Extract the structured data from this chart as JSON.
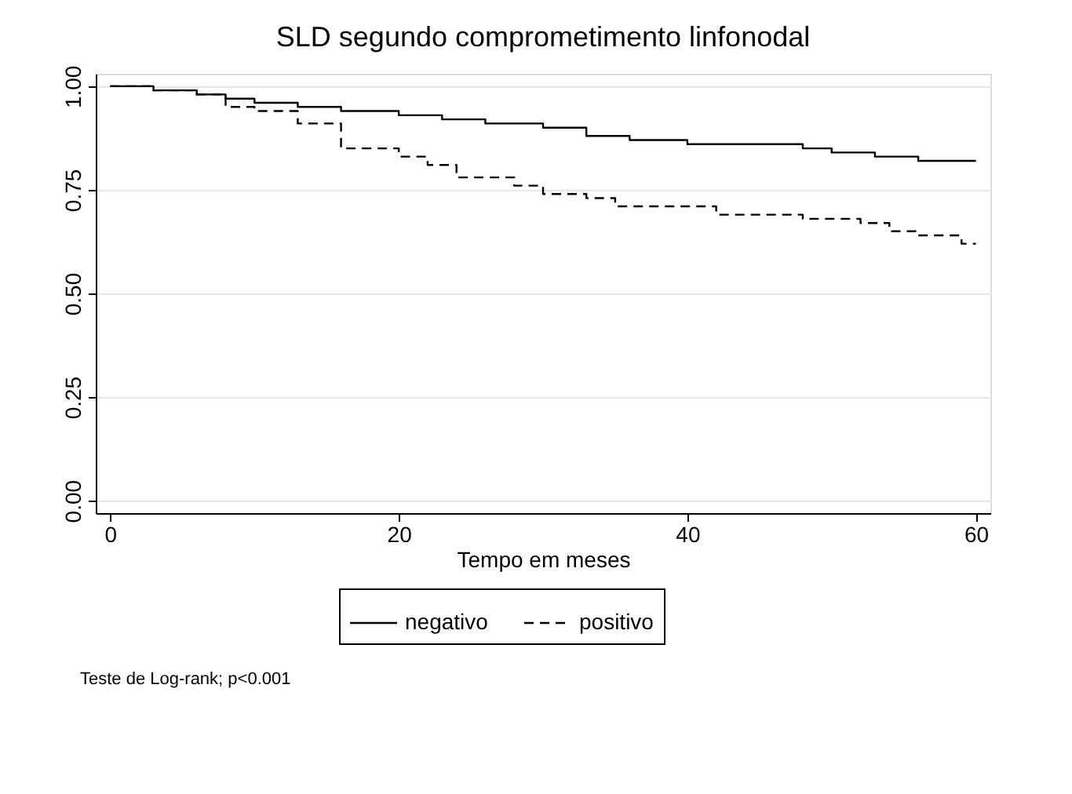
{
  "chart_data": {
    "type": "step",
    "title": "SLD segundo comprometimento linfonodal",
    "xlabel": "Tempo em meses",
    "xlim": [
      -1,
      61
    ],
    "xticks": [
      0,
      20,
      40,
      60
    ],
    "ylim": [
      -0.03,
      1.03
    ],
    "yticks": [
      {
        "value": 0,
        "label": "0.00"
      },
      {
        "value": 0.25,
        "label": "0.25"
      },
      {
        "value": 0.5,
        "label": "0.50"
      },
      {
        "value": 0.75,
        "label": "0.75"
      },
      {
        "value": 1,
        "label": "1.00"
      }
    ],
    "grid": "y",
    "legend": "bottom",
    "annotations": [
      "Teste de Log-rank; p<0.001"
    ],
    "series": [
      {
        "name": "negativo",
        "color": "#000000",
        "line_style": "solid",
        "x": [
          0,
          3,
          6,
          8,
          10,
          13,
          16,
          20,
          23,
          26,
          30,
          33,
          36,
          40,
          46,
          48,
          50,
          53,
          56,
          60
        ],
        "values": [
          1.0,
          0.99,
          0.98,
          0.97,
          0.96,
          0.95,
          0.94,
          0.93,
          0.92,
          0.91,
          0.9,
          0.88,
          0.87,
          0.86,
          0.86,
          0.85,
          0.84,
          0.83,
          0.82,
          0.82
        ]
      },
      {
        "name": "positivo",
        "color": "#000000",
        "line_style": "dashed",
        "x": [
          0,
          3,
          6,
          8,
          10,
          13,
          16,
          20,
          22,
          24,
          28,
          30,
          33,
          35,
          42,
          48,
          52,
          54,
          56,
          59,
          60
        ],
        "values": [
          1.0,
          0.99,
          0.98,
          0.95,
          0.94,
          0.91,
          0.85,
          0.83,
          0.81,
          0.78,
          0.76,
          0.74,
          0.73,
          0.71,
          0.69,
          0.68,
          0.67,
          0.65,
          0.64,
          0.62,
          0.62
        ]
      }
    ]
  }
}
